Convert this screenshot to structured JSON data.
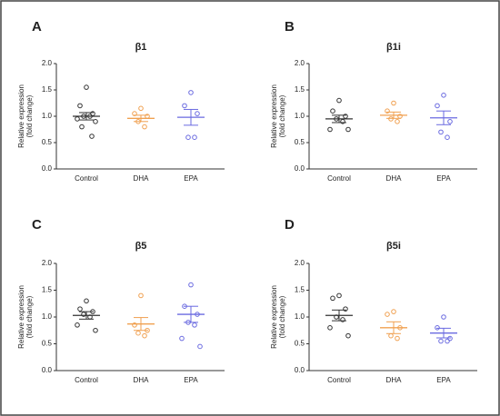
{
  "chart_data": [
    {
      "type": "dot_plot",
      "panel": "A",
      "title": "β1",
      "ylabel": [
        "Relative expression",
        "(fold change)"
      ],
      "ylim": [
        0,
        2
      ],
      "yticks": [
        {
          "value": 0,
          "label": "0.0"
        },
        {
          "value": 0.5,
          "label": "0.5"
        },
        {
          "value": 1,
          "label": "1.0"
        },
        {
          "value": 1.5,
          "label": "1.5"
        },
        {
          "value": 2,
          "label": "2.0"
        }
      ],
      "groups": [
        {
          "name": "Control",
          "color": "#333333",
          "values": [
            1.55,
            1.2,
            1.05,
            1.0,
            1.0,
            0.95,
            0.9,
            0.8,
            0.62
          ],
          "mean": 1.0,
          "sem": 0.07
        },
        {
          "name": "DHA",
          "color": "#f0a050",
          "values": [
            1.15,
            1.05,
            1.0,
            0.9,
            0.8
          ],
          "mean": 0.96,
          "sem": 0.06
        },
        {
          "name": "EPA",
          "color": "#6a6ae0",
          "values": [
            1.45,
            1.2,
            1.05,
            0.6,
            0.6
          ],
          "mean": 0.98,
          "sem": 0.15
        }
      ]
    },
    {
      "type": "dot_plot",
      "panel": "B",
      "title": "β1i",
      "ylabel": [
        "Relative expression",
        "(fold change)"
      ],
      "ylim": [
        0,
        2
      ],
      "yticks": [
        {
          "value": 0,
          "label": "0.0"
        },
        {
          "value": 0.5,
          "label": "0.5"
        },
        {
          "value": 1,
          "label": "1.0"
        },
        {
          "value": 1.5,
          "label": "1.5"
        },
        {
          "value": 2,
          "label": "2.0"
        }
      ],
      "groups": [
        {
          "name": "Control",
          "color": "#333333",
          "values": [
            1.3,
            1.1,
            1.0,
            0.95,
            0.9,
            0.75,
            0.75
          ],
          "mean": 0.95,
          "sem": 0.07
        },
        {
          "name": "DHA",
          "color": "#f0a050",
          "values": [
            1.25,
            1.1,
            1.0,
            0.95,
            0.9
          ],
          "mean": 1.02,
          "sem": 0.06
        },
        {
          "name": "EPA",
          "color": "#6a6ae0",
          "values": [
            1.4,
            1.2,
            0.9,
            0.7,
            0.6
          ],
          "mean": 0.97,
          "sem": 0.13
        }
      ]
    },
    {
      "type": "dot_plot",
      "panel": "C",
      "title": "β5",
      "ylabel": [
        "Relative expression",
        "(fold change)"
      ],
      "ylim": [
        0,
        2
      ],
      "yticks": [
        {
          "value": 0,
          "label": "0.0"
        },
        {
          "value": 0.5,
          "label": "0.5"
        },
        {
          "value": 1,
          "label": "1.0"
        },
        {
          "value": 1.5,
          "label": "1.5"
        },
        {
          "value": 2,
          "label": "2.0"
        }
      ],
      "groups": [
        {
          "name": "Control",
          "color": "#333333",
          "values": [
            1.3,
            1.15,
            1.1,
            1.05,
            1.0,
            0.85,
            0.75
          ],
          "mean": 1.03,
          "sem": 0.07
        },
        {
          "name": "DHA",
          "color": "#f0a050",
          "values": [
            1.4,
            0.85,
            0.75,
            0.7,
            0.65
          ],
          "mean": 0.87,
          "sem": 0.12
        },
        {
          "name": "EPA",
          "color": "#6a6ae0",
          "values": [
            1.6,
            1.2,
            1.05,
            0.9,
            0.85,
            0.6,
            0.45
          ],
          "mean": 1.05,
          "sem": 0.15
        }
      ]
    },
    {
      "type": "dot_plot",
      "panel": "D",
      "title": "β5i",
      "ylabel": [
        "Relative expression",
        "(fold change)"
      ],
      "ylim": [
        0,
        2
      ],
      "yticks": [
        {
          "value": 0,
          "label": "0.0"
        },
        {
          "value": 0.5,
          "label": "0.5"
        },
        {
          "value": 1,
          "label": "1.0"
        },
        {
          "value": 1.5,
          "label": "1.5"
        },
        {
          "value": 2,
          "label": "2.0"
        }
      ],
      "groups": [
        {
          "name": "Control",
          "color": "#333333",
          "values": [
            1.4,
            1.35,
            1.15,
            1.0,
            0.95,
            0.8,
            0.65
          ],
          "mean": 1.03,
          "sem": 0.1
        },
        {
          "name": "DHA",
          "color": "#f0a050",
          "values": [
            1.1,
            1.05,
            0.8,
            0.65,
            0.6
          ],
          "mean": 0.8,
          "sem": 0.11
        },
        {
          "name": "EPA",
          "color": "#6a6ae0",
          "values": [
            1.0,
            0.8,
            0.6,
            0.55,
            0.55
          ],
          "mean": 0.7,
          "sem": 0.09
        }
      ]
    }
  ]
}
